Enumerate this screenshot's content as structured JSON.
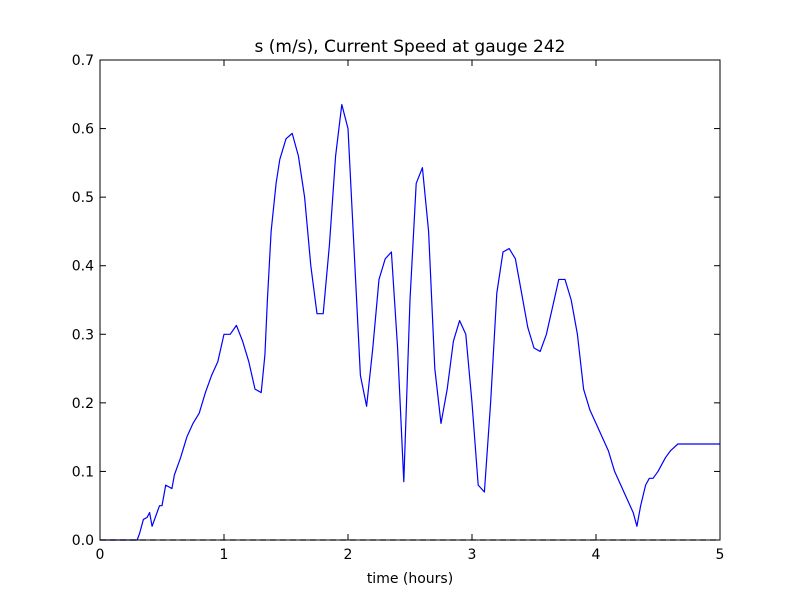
{
  "chart_data": {
    "type": "line",
    "title": "s (m/s), Current Speed at gauge 242",
    "xlabel": "time (hours)",
    "ylabel": "",
    "xlim": [
      0,
      5
    ],
    "ylim": [
      0,
      0.7
    ],
    "xticks": [
      0,
      1,
      2,
      3,
      4,
      5
    ],
    "xtick_labels": [
      "0",
      "1",
      "2",
      "3",
      "4",
      "5"
    ],
    "yticks": [
      0.0,
      0.1,
      0.2,
      0.3,
      0.4,
      0.5,
      0.6,
      0.7
    ],
    "ytick_labels": [
      "0.0",
      "0.1",
      "0.2",
      "0.3",
      "0.4",
      "0.5",
      "0.6",
      "0.7"
    ],
    "grid": false,
    "series": [
      {
        "style": "solid",
        "color": "#0000ff",
        "x": [
          0.0,
          0.1,
          0.2,
          0.3,
          0.32,
          0.35,
          0.38,
          0.4,
          0.42,
          0.45,
          0.48,
          0.5,
          0.53,
          0.55,
          0.58,
          0.6,
          0.63,
          0.65,
          0.7,
          0.75,
          0.8,
          0.85,
          0.9,
          0.95,
          1.0,
          1.05,
          1.1,
          1.15,
          1.2,
          1.25,
          1.3,
          1.33,
          1.35,
          1.38,
          1.42,
          1.45,
          1.5,
          1.55,
          1.6,
          1.65,
          1.7,
          1.75,
          1.8,
          1.85,
          1.9,
          1.95,
          2.0,
          2.05,
          2.1,
          2.15,
          2.2,
          2.25,
          2.3,
          2.35,
          2.4,
          2.45,
          2.5,
          2.55,
          2.6,
          2.65,
          2.7,
          2.75,
          2.8,
          2.85,
          2.9,
          2.95,
          3.0,
          3.05,
          3.1,
          3.15,
          3.2,
          3.25,
          3.3,
          3.35,
          3.4,
          3.45,
          3.5,
          3.55,
          3.6,
          3.65,
          3.7,
          3.75,
          3.8,
          3.85,
          3.9,
          3.95,
          4.0,
          4.05,
          4.1,
          4.15,
          4.2,
          4.25,
          4.3,
          4.33,
          4.36,
          4.4,
          4.43,
          4.46,
          4.5,
          4.53,
          4.56,
          4.6,
          4.63,
          4.66,
          4.7,
          4.75,
          4.8,
          4.85,
          4.9,
          4.95,
          5.0
        ],
        "y": [
          0.0,
          0.0,
          0.0,
          0.0,
          0.01,
          0.03,
          0.033,
          0.04,
          0.02,
          0.035,
          0.05,
          0.05,
          0.08,
          0.078,
          0.075,
          0.095,
          0.11,
          0.12,
          0.15,
          0.17,
          0.185,
          0.215,
          0.24,
          0.26,
          0.3,
          0.3,
          0.313,
          0.29,
          0.26,
          0.22,
          0.215,
          0.27,
          0.35,
          0.45,
          0.52,
          0.555,
          0.585,
          0.593,
          0.56,
          0.5,
          0.4,
          0.33,
          0.33,
          0.43,
          0.56,
          0.635,
          0.6,
          0.42,
          0.24,
          0.195,
          0.28,
          0.38,
          0.41,
          0.42,
          0.28,
          0.085,
          0.35,
          0.52,
          0.543,
          0.45,
          0.25,
          0.17,
          0.22,
          0.29,
          0.32,
          0.3,
          0.2,
          0.08,
          0.07,
          0.2,
          0.36,
          0.42,
          0.425,
          0.41,
          0.36,
          0.31,
          0.28,
          0.275,
          0.3,
          0.34,
          0.38,
          0.38,
          0.35,
          0.3,
          0.22,
          0.19,
          0.17,
          0.15,
          0.13,
          0.1,
          0.08,
          0.06,
          0.04,
          0.02,
          0.05,
          0.08,
          0.09,
          0.09,
          0.1,
          0.11,
          0.12,
          0.13,
          0.135,
          0.14,
          0.14,
          0.14,
          0.14,
          0.14,
          0.14,
          0.14,
          0.14
        ]
      },
      {
        "style": "dashed",
        "color": "#000000",
        "x": [
          0,
          5
        ],
        "y": [
          0,
          0
        ]
      }
    ]
  }
}
